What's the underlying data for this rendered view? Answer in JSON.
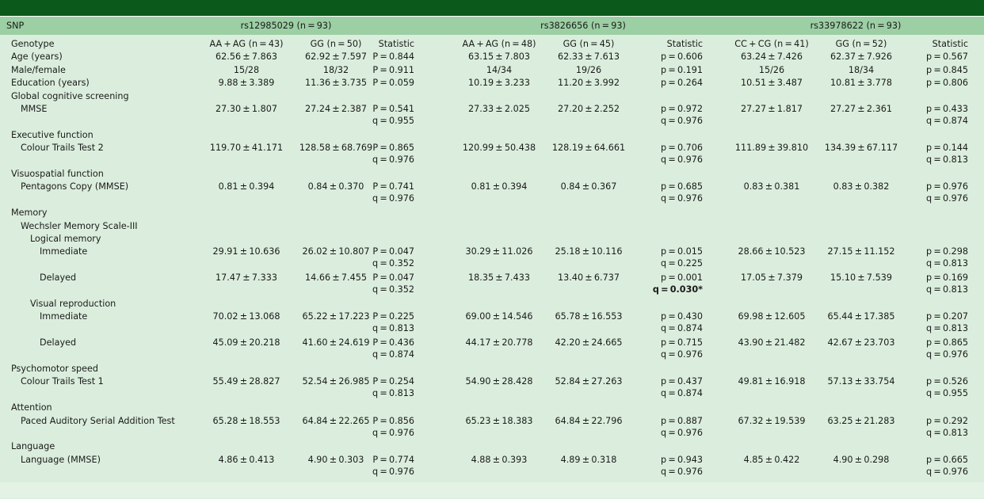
{
  "header": {
    "snp": "SNP",
    "groups": [
      "rs12985029 (n = 93)",
      "rs3826656 (n = 93)",
      "rs33978622 (n = 93)"
    ]
  },
  "genotype_row": {
    "label": "Genotype",
    "cells": [
      "AA + AG (n = 43)",
      "GG (n = 50)",
      "Statistic",
      "AA + AG (n = 48)",
      "GG (n = 45)",
      "Statistic",
      "CC + CG (n = 41)",
      "GG (n = 52)",
      "Statistic"
    ]
  },
  "rows": [
    {
      "label": "Age (years)",
      "indent": 0,
      "vals": [
        "62.56 ± 7.863",
        "62.92 ± 7.597",
        "63.15 ± 7.803",
        "62.33 ± 7.613",
        "63.24 ± 7.426",
        "62.37 ± 7.926"
      ],
      "stats": [
        [
          "P = 0.844"
        ],
        [
          "p = 0.606"
        ],
        [
          "p = 0.567"
        ]
      ]
    },
    {
      "label": "Male/female",
      "indent": 0,
      "vals": [
        "15/28",
        "18/32",
        "14/34",
        "19/26",
        "15/26",
        "18/34"
      ],
      "stats": [
        [
          "P = 0.911"
        ],
        [
          "p = 0.191"
        ],
        [
          "p = 0.845"
        ]
      ]
    },
    {
      "label": "Education (years)",
      "indent": 0,
      "vals": [
        "9.88 ± 3.389",
        "11.36 ± 3.735",
        "10.19 ± 3.233",
        "11.20 ± 3.992",
        "10.51 ± 3.487",
        "10.81 ± 3.778"
      ],
      "stats": [
        [
          "P = 0.059"
        ],
        [
          "p = 0.264"
        ],
        [
          "p = 0.806"
        ]
      ]
    },
    {
      "label": "Global cognitive screening",
      "indent": 0
    },
    {
      "label": "MMSE",
      "indent": 1,
      "vals": [
        "27.30 ± 1.807",
        "27.24 ± 2.387",
        "27.33 ± 2.025",
        "27.20 ± 2.252",
        "27.27 ± 1.817",
        "27.27 ± 2.361"
      ],
      "stats": [
        [
          "P = 0.541",
          "q = 0.955"
        ],
        [
          "p = 0.972",
          "q = 0.976"
        ],
        [
          "p = 0.433",
          "q = 0.874"
        ]
      ]
    },
    {
      "label": "Executive function",
      "indent": 0
    },
    {
      "label": "Colour Trails Test 2",
      "indent": 1,
      "vals": [
        "119.70 ± 41.171",
        "128.58 ± 68.769",
        "120.99 ± 50.438",
        "128.19 ± 64.661",
        "111.89 ± 39.810",
        "134.39 ± 67.117"
      ],
      "stats": [
        [
          "P = 0.865",
          "q = 0.976"
        ],
        [
          "p = 0.706",
          "q = 0.976"
        ],
        [
          "p = 0.144",
          "q = 0.813"
        ]
      ]
    },
    {
      "label": "Visuospatial function",
      "indent": 0
    },
    {
      "label": "Pentagons Copy (MMSE)",
      "indent": 1,
      "vals": [
        "0.81 ± 0.394",
        "0.84 ± 0.370",
        "0.81 ± 0.394",
        "0.84 ± 0.367",
        "0.83 ± 0.381",
        "0.83 ± 0.382"
      ],
      "stats": [
        [
          "P = 0.741",
          "q = 0.976"
        ],
        [
          "p = 0.685",
          "q = 0.976"
        ],
        [
          "p = 0.976",
          "q = 0.976"
        ]
      ]
    },
    {
      "label": "Memory",
      "indent": 0
    },
    {
      "label": "Wechsler Memory Scale-III",
      "indent": 1
    },
    {
      "label": "Logical memory",
      "indent": 2
    },
    {
      "label": "Immediate",
      "indent": 3,
      "vals": [
        "29.91 ± 10.636",
        "26.02 ± 10.807",
        "30.29 ± 11.026",
        "25.18 ± 10.116",
        "28.66 ± 10.523",
        "27.15 ± 11.152"
      ],
      "stats": [
        [
          "P = 0.047",
          "q = 0.352"
        ],
        [
          "p = 0.015",
          "q = 0.225"
        ],
        [
          "p = 0.298",
          "q = 0.813"
        ]
      ]
    },
    {
      "label": "Delayed",
      "indent": 3,
      "vals": [
        "17.47 ± 7.333",
        "14.66 ± 7.455",
        "18.35 ± 7.433",
        "13.40 ± 6.737",
        "17.05 ± 7.379",
        "15.10 ± 7.539"
      ],
      "stats": [
        [
          "P = 0.047",
          "q = 0.352"
        ],
        [
          "p = 0.001",
          "q = 0.030*"
        ],
        [
          "p = 0.169",
          "q = 0.813"
        ]
      ],
      "bold": [
        [
          1,
          1
        ]
      ]
    },
    {
      "label": "Visual reproduction",
      "indent": 2
    },
    {
      "label": "Immediate",
      "indent": 3,
      "vals": [
        "70.02 ± 13.068",
        "65.22 ± 17.223",
        "69.00 ± 14.546",
        "65.78 ± 16.553",
        "69.98 ± 12.605",
        "65.44 ± 17.385"
      ],
      "stats": [
        [
          "P = 0.225",
          "q = 0.813"
        ],
        [
          "p = 0.430",
          "q = 0.874"
        ],
        [
          "p = 0.207",
          "q = 0.813"
        ]
      ]
    },
    {
      "label": "Delayed",
      "indent": 3,
      "vals": [
        "45.09 ± 20.218",
        "41.60 ± 24.619",
        "44.17 ± 20.778",
        "42.20 ± 24.665",
        "43.90 ± 21.482",
        "42.67 ± 23.703"
      ],
      "stats": [
        [
          "P = 0.436",
          "q = 0.874"
        ],
        [
          "p = 0.715",
          "q = 0.976"
        ],
        [
          "p = 0.865",
          "q = 0.976"
        ]
      ]
    },
    {
      "label": "Psychomotor speed",
      "indent": 0
    },
    {
      "label": "Colour Trails Test 1",
      "indent": 1,
      "vals": [
        "55.49 ± 28.827",
        "52.54 ± 26.985",
        "54.90 ± 28.428",
        "52.84 ± 27.263",
        "49.81 ± 16.918",
        "57.13 ± 33.754"
      ],
      "stats": [
        [
          "P = 0.254",
          "q = 0.813"
        ],
        [
          "p = 0.437",
          "q = 0.874"
        ],
        [
          "p = 0.526",
          "q = 0.955"
        ]
      ]
    },
    {
      "label": "Attention",
      "indent": 0
    },
    {
      "label": "Paced Auditory Serial Addition Test",
      "indent": 1,
      "vals": [
        "65.28 ± 18.553",
        "64.84 ± 22.265",
        "65.23 ± 18.383",
        "64.84 ± 22.796",
        "67.32 ± 19.539",
        "63.25 ± 21.283"
      ],
      "stats": [
        [
          "P = 0.856",
          "q = 0.976"
        ],
        [
          "p = 0.887",
          "q = 0.976"
        ],
        [
          "p = 0.292",
          "q = 0.813"
        ]
      ]
    },
    {
      "label": "Language",
      "indent": 0
    },
    {
      "label": "Language (MMSE)",
      "indent": 1,
      "vals": [
        "4.86 ± 0.413",
        "4.90 ± 0.303",
        "4.88 ± 0.393",
        "4.89 ± 0.318",
        "4.85 ± 0.422",
        "4.90 ± 0.298"
      ],
      "stats": [
        [
          "P = 0.774",
          "q = 0.976"
        ],
        [
          "p = 0.943",
          "q = 0.976"
        ],
        [
          "p = 0.665",
          "q = 0.976"
        ]
      ]
    }
  ]
}
